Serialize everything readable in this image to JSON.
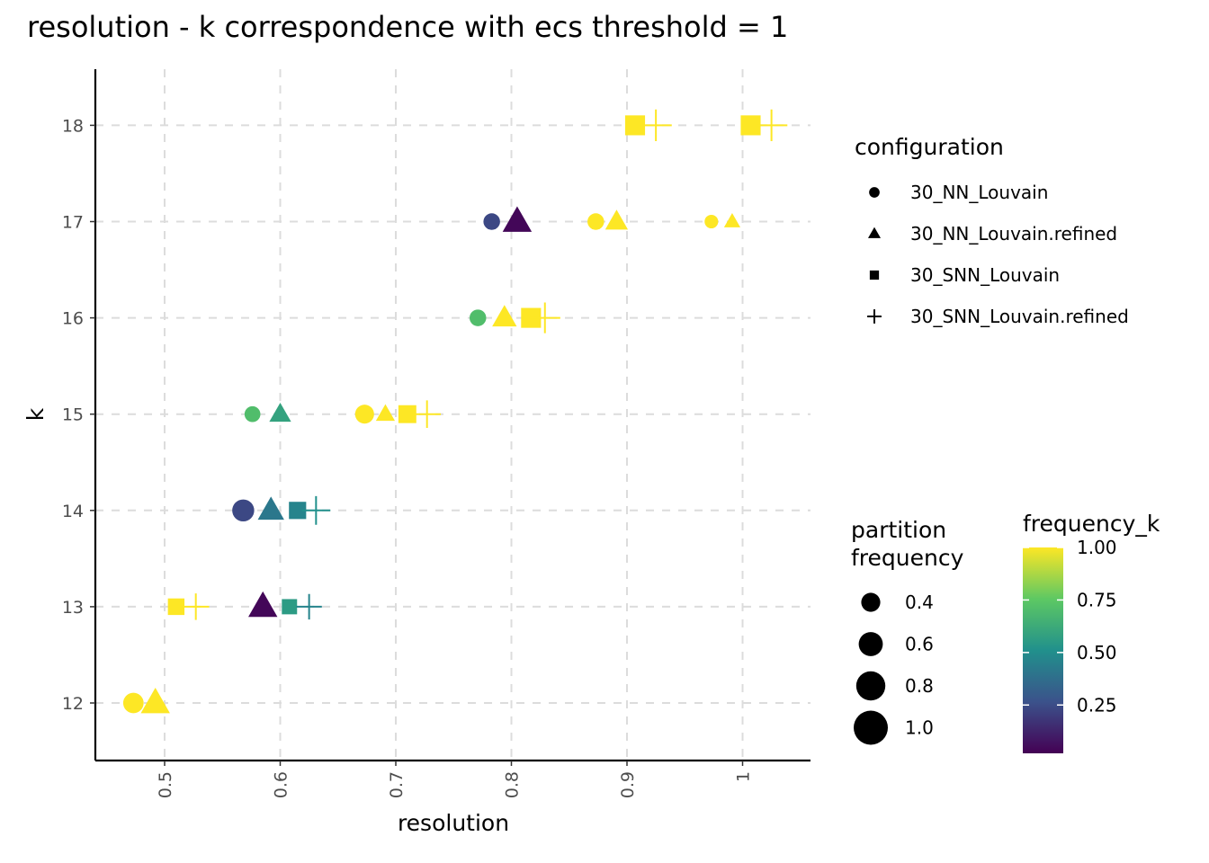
{
  "chart_data": {
    "type": "scatter",
    "title": "resolution - k correspondence with ecs threshold = 1",
    "xlabel": "resolution",
    "ylabel": "k",
    "xlim": [
      0.44,
      1.06
    ],
    "ylim": [
      11.4,
      18.6
    ],
    "x_ticks": [
      0.5,
      0.6,
      0.7,
      0.8,
      0.9,
      1.0
    ],
    "x_tick_labels": [
      "0.5",
      "0.6",
      "0.7",
      "0.8",
      "0.9",
      "1"
    ],
    "y_ticks": [
      12,
      13,
      14,
      15,
      16,
      17,
      18
    ],
    "y_tick_labels": [
      "12",
      "13",
      "14",
      "15",
      "16",
      "17",
      "18"
    ],
    "grid": true,
    "legend_placement": "right",
    "configuration_legend": {
      "title": "configuration",
      "entries": [
        {
          "label": "30_NN_Louvain",
          "shape": "circle"
        },
        {
          "label": "30_NN_Louvain.refined",
          "shape": "triangle"
        },
        {
          "label": "30_SNN_Louvain",
          "shape": "square"
        },
        {
          "label": "30_SNN_Louvain.refined",
          "shape": "plus"
        }
      ]
    },
    "size_legend": {
      "title_lines": [
        "partition",
        "frequency"
      ],
      "entries": [
        {
          "label": "0.4",
          "value": 0.4
        },
        {
          "label": "0.6",
          "value": 0.6
        },
        {
          "label": "0.8",
          "value": 0.8
        },
        {
          "label": "1.0",
          "value": 1.0
        }
      ]
    },
    "color_legend": {
      "title": "frequency_k",
      "tick_labels": [
        "1.00",
        "0.75",
        "0.50",
        "0.25"
      ],
      "tick_values": [
        1.0,
        0.75,
        0.5,
        0.25
      ],
      "range": [
        0.02,
        1.0
      ],
      "palette": "viridis",
      "colors": [
        "#440154",
        "#3b528b",
        "#21908c",
        "#5dc863",
        "#fde725"
      ]
    },
    "points": [
      {
        "x": 0.473,
        "k": 12,
        "config": "30_NN_Louvain",
        "frequency": 0.75,
        "frequency_k": 1.0
      },
      {
        "x": 0.492,
        "k": 12,
        "config": "30_NN_Louvain.refined",
        "frequency": 1.0,
        "frequency_k": 1.0
      },
      {
        "x": 0.51,
        "k": 13,
        "config": "30_SNN_Louvain",
        "frequency": 0.65,
        "frequency_k": 1.0
      },
      {
        "x": 0.527,
        "k": 13,
        "config": "30_SNN_Louvain.refined",
        "frequency": 0.7,
        "frequency_k": 1.0
      },
      {
        "x": 0.585,
        "k": 13,
        "config": "30_NN_Louvain.refined",
        "frequency": 1.0,
        "frequency_k": 0.02
      },
      {
        "x": 0.608,
        "k": 13,
        "config": "30_SNN_Louvain",
        "frequency": 0.55,
        "frequency_k": 0.55
      },
      {
        "x": 0.625,
        "k": 13,
        "config": "30_SNN_Louvain.refined",
        "frequency": 0.65,
        "frequency_k": 0.45
      },
      {
        "x": 0.568,
        "k": 14,
        "config": "30_NN_Louvain",
        "frequency": 0.85,
        "frequency_k": 0.22
      },
      {
        "x": 0.592,
        "k": 14,
        "config": "30_NN_Louvain.refined",
        "frequency": 0.85,
        "frequency_k": 0.4
      },
      {
        "x": 0.615,
        "k": 14,
        "config": "30_SNN_Louvain",
        "frequency": 0.7,
        "frequency_k": 0.45
      },
      {
        "x": 0.631,
        "k": 14,
        "config": "30_SNN_Louvain.refined",
        "frequency": 0.8,
        "frequency_k": 0.5
      },
      {
        "x": 0.576,
        "k": 15,
        "config": "30_NN_Louvain",
        "frequency": 0.45,
        "frequency_k": 0.7
      },
      {
        "x": 0.6,
        "k": 15,
        "config": "30_NN_Louvain.refined",
        "frequency": 0.6,
        "frequency_k": 0.58
      },
      {
        "x": 0.673,
        "k": 15,
        "config": "30_NN_Louvain",
        "frequency": 0.65,
        "frequency_k": 1.0
      },
      {
        "x": 0.691,
        "k": 15,
        "config": "30_NN_Louvain.refined",
        "frequency": 0.45,
        "frequency_k": 1.0
      },
      {
        "x": 0.71,
        "k": 15,
        "config": "30_SNN_Louvain",
        "frequency": 0.75,
        "frequency_k": 1.0
      },
      {
        "x": 0.727,
        "k": 15,
        "config": "30_SNN_Louvain.refined",
        "frequency": 0.75,
        "frequency_k": 1.0
      },
      {
        "x": 0.771,
        "k": 16,
        "config": "30_NN_Louvain",
        "frequency": 0.5,
        "frequency_k": 0.7
      },
      {
        "x": 0.794,
        "k": 16,
        "config": "30_NN_Louvain.refined",
        "frequency": 0.75,
        "frequency_k": 1.0
      },
      {
        "x": 0.817,
        "k": 16,
        "config": "30_SNN_Louvain",
        "frequency": 0.9,
        "frequency_k": 1.0
      },
      {
        "x": 0.829,
        "k": 16,
        "config": "30_SNN_Louvain.refined",
        "frequency": 0.9,
        "frequency_k": 1.0
      },
      {
        "x": 0.783,
        "k": 17,
        "config": "30_NN_Louvain",
        "frequency": 0.5,
        "frequency_k": 0.22
      },
      {
        "x": 0.805,
        "k": 17,
        "config": "30_NN_Louvain.refined",
        "frequency": 1.0,
        "frequency_k": 0.02
      },
      {
        "x": 0.873,
        "k": 17,
        "config": "30_NN_Louvain",
        "frequency": 0.5,
        "frequency_k": 1.0
      },
      {
        "x": 0.891,
        "k": 17,
        "config": "30_NN_Louvain.refined",
        "frequency": 0.65,
        "frequency_k": 1.0
      },
      {
        "x": 0.973,
        "k": 17,
        "config": "30_NN_Louvain",
        "frequency": 0.3,
        "frequency_k": 1.0
      },
      {
        "x": 0.991,
        "k": 17,
        "config": "30_NN_Louvain.refined",
        "frequency": 0.3,
        "frequency_k": 1.0
      },
      {
        "x": 0.907,
        "k": 18,
        "config": "30_SNN_Louvain",
        "frequency": 0.9,
        "frequency_k": 1.0
      },
      {
        "x": 0.925,
        "k": 18,
        "config": "30_SNN_Louvain.refined",
        "frequency": 0.95,
        "frequency_k": 1.0
      },
      {
        "x": 1.007,
        "k": 18,
        "config": "30_SNN_Louvain",
        "frequency": 0.9,
        "frequency_k": 1.0
      },
      {
        "x": 1.025,
        "k": 18,
        "config": "30_SNN_Louvain.refined",
        "frequency": 0.95,
        "frequency_k": 1.0
      }
    ]
  }
}
